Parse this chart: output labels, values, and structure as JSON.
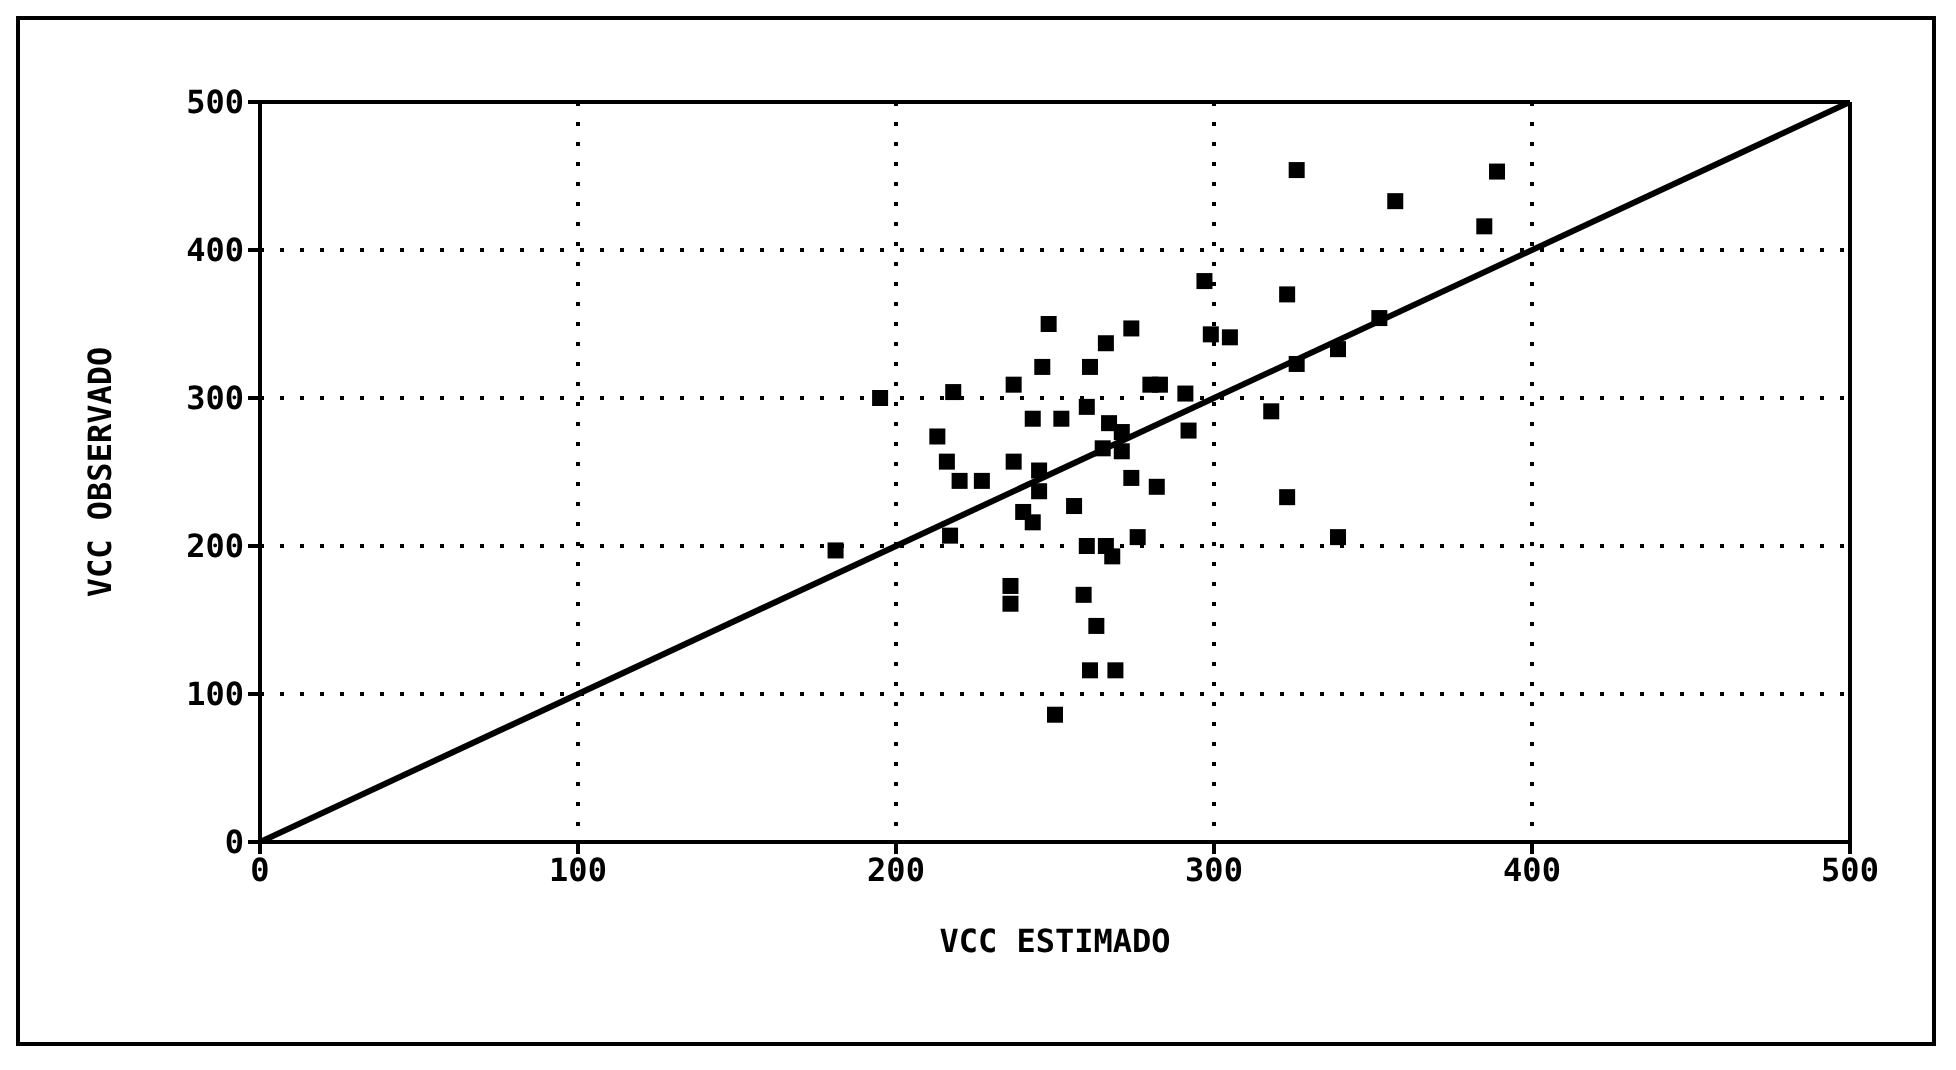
{
  "chart_data": {
    "type": "scatter",
    "xlabel": "VCC ESTIMADO",
    "ylabel": "VCC OBSERVADO",
    "xlim": [
      0,
      500
    ],
    "ylim": [
      0,
      500
    ],
    "xticks": [
      0,
      100,
      200,
      300,
      400,
      500
    ],
    "yticks": [
      0,
      100,
      200,
      300,
      400,
      500
    ],
    "grid": true,
    "legend": false,
    "marker": "square",
    "series": [
      {
        "color": "#000000",
        "x": [
          248,
          274,
          266,
          299,
          305,
          246,
          261,
          195,
          218,
          237,
          280,
          283,
          291,
          260,
          252,
          243,
          318,
          267,
          271,
          213,
          292,
          265,
          271,
          237,
          216,
          220,
          227,
          245,
          245,
          274,
          282,
          323,
          256,
          240,
          243,
          217,
          181,
          260,
          266,
          268,
          276,
          236,
          236,
          259,
          263,
          261,
          269,
          250,
          326,
          389,
          357,
          385,
          297,
          323,
          352,
          339,
          326,
          339
        ],
        "values": [
          350,
          347,
          337,
          343,
          341,
          321,
          321,
          300,
          304,
          309,
          309,
          309,
          303,
          294,
          286,
          286,
          291,
          283,
          277,
          274,
          278,
          266,
          264,
          257,
          257,
          244,
          244,
          251,
          237,
          246,
          240,
          233,
          227,
          223,
          216,
          207,
          197,
          200,
          200,
          193,
          206,
          173,
          161,
          167,
          146,
          116,
          116,
          86,
          454,
          453,
          433,
          416,
          379,
          370,
          354,
          333,
          323,
          206
        ]
      },
      {
        "type": "line",
        "color": "#000000",
        "line_style": "solid",
        "marker": "none",
        "x": [
          0,
          500
        ],
        "values": [
          0,
          500
        ]
      }
    ]
  }
}
